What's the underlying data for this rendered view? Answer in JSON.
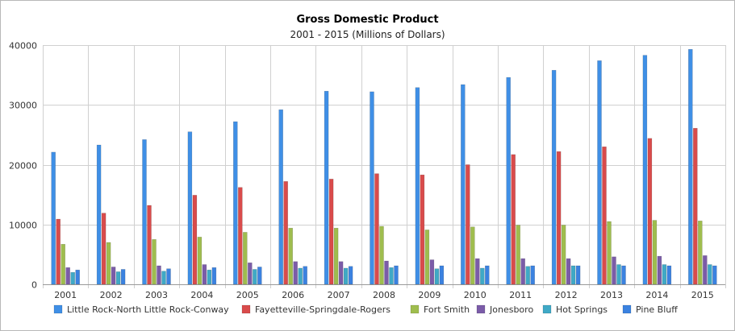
{
  "chart_data": {
    "type": "bar",
    "title": "Gross Domestic Product",
    "subtitle": "2001 - 2015 (Millions of Dollars)",
    "xlabel": "",
    "ylabel": "",
    "ylim": [
      0,
      40000
    ],
    "yticks": [
      0,
      10000,
      20000,
      30000,
      40000
    ],
    "grid": true,
    "legend_position": "bottom",
    "categories": [
      "2001",
      "2002",
      "2003",
      "2004",
      "2005",
      "2006",
      "2007",
      "2008",
      "2009",
      "2010",
      "2011",
      "2012",
      "2013",
      "2014",
      "2015"
    ],
    "series": [
      {
        "name": "Little Rock-North Little Rock-Conway",
        "color": "#3f8fe6",
        "values": [
          22100,
          23300,
          24200,
          25500,
          27200,
          29200,
          32300,
          32200,
          32900,
          33400,
          34600,
          35800,
          37400,
          38300,
          39300
        ]
      },
      {
        "name": "Fayetteville-Springdale-Rogers",
        "color": "#d94b4b",
        "values": [
          10900,
          11900,
          13200,
          14900,
          16200,
          17200,
          17600,
          18500,
          18300,
          20000,
          21700,
          22200,
          23000,
          24400,
          26100
        ]
      },
      {
        "name": "Fort Smith",
        "color": "#9fbd4e",
        "values": [
          6700,
          7000,
          7500,
          7900,
          8700,
          9400,
          9400,
          9700,
          9100,
          9600,
          9900,
          9900,
          10500,
          10700,
          10600
        ]
      },
      {
        "name": "Jonesboro",
        "color": "#7b5ca8",
        "values": [
          2800,
          2900,
          3100,
          3300,
          3600,
          3800,
          3800,
          3900,
          4100,
          4300,
          4300,
          4300,
          4600,
          4700,
          4800
        ]
      },
      {
        "name": "Hot Springs",
        "color": "#3fa9c6",
        "values": [
          2000,
          2100,
          2200,
          2400,
          2500,
          2700,
          2700,
          2800,
          2600,
          2700,
          3000,
          3100,
          3300,
          3300,
          3300
        ]
      },
      {
        "name": "Pine Bluff",
        "color": "#3b82e0",
        "values": [
          2400,
          2500,
          2600,
          2800,
          2900,
          3000,
          3000,
          3100,
          3100,
          3100,
          3100,
          3100,
          3100,
          3100,
          3100
        ]
      }
    ]
  }
}
